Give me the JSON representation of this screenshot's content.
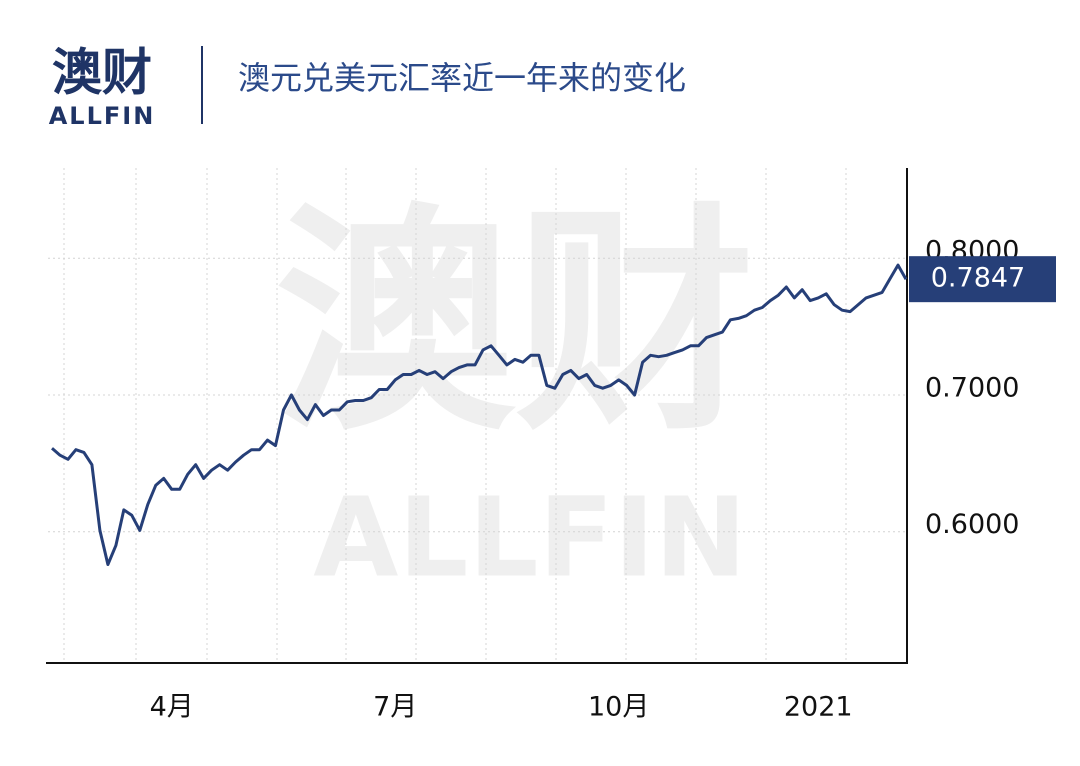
{
  "brand": "澳财",
  "brand_sub": "ALLFIN",
  "watermark": "澳财",
  "watermark_sub": "ALLFIN",
  "chart_data": {
    "type": "line",
    "title": "澳元兑美元汇率近一年来的变化",
    "color": "#263f78",
    "categories": [
      null,
      null,
      null,
      null,
      null,
      null,
      null,
      null,
      null,
      null,
      null,
      null,
      null,
      null,
      null,
      "4月",
      null,
      null,
      null,
      null,
      null,
      null,
      null,
      null,
      null,
      null,
      null,
      null,
      null,
      null,
      null,
      null,
      null,
      null,
      null,
      null,
      null,
      null,
      null,
      null,
      null,
      null,
      null,
      "7月",
      null,
      null,
      null,
      null,
      null,
      null,
      null,
      null,
      null,
      null,
      null,
      null,
      null,
      null,
      null,
      null,
      null,
      null,
      null,
      null,
      null,
      null,
      null,
      null,
      null,
      null,
      null,
      "10月",
      null,
      null,
      null,
      null,
      null,
      null,
      null,
      null,
      null,
      null,
      null,
      null,
      null,
      null,
      null,
      null,
      null,
      null,
      null,
      null,
      null,
      null,
      null,
      null,
      "2021",
      null,
      null,
      null,
      null,
      null,
      null,
      null,
      null,
      null,
      null,
      null
    ],
    "values": [
      0.661,
      0.656,
      0.653,
      0.66,
      0.658,
      0.649,
      0.601,
      0.576,
      0.59,
      0.616,
      0.612,
      0.601,
      0.62,
      0.634,
      0.639,
      0.631,
      0.631,
      0.642,
      0.649,
      0.639,
      0.645,
      0.649,
      0.645,
      0.651,
      0.656,
      0.66,
      0.66,
      0.667,
      0.663,
      0.689,
      0.7,
      0.689,
      0.682,
      0.693,
      0.685,
      0.689,
      0.689,
      0.695,
      0.696,
      0.696,
      0.698,
      0.704,
      0.704,
      0.711,
      0.715,
      0.715,
      0.718,
      0.715,
      0.717,
      0.712,
      0.717,
      0.72,
      0.722,
      0.722,
      0.733,
      0.736,
      0.729,
      0.722,
      0.726,
      0.724,
      0.729,
      0.729,
      0.707,
      0.705,
      0.715,
      0.718,
      0.712,
      0.715,
      0.707,
      0.705,
      0.707,
      0.711,
      0.707,
      0.7,
      0.724,
      0.729,
      0.728,
      0.729,
      0.731,
      0.733,
      0.736,
      0.736,
      0.742,
      0.744,
      0.746,
      0.755,
      0.756,
      0.758,
      0.762,
      0.764,
      0.769,
      0.773,
      0.779,
      0.771,
      0.777,
      0.769,
      0.771,
      0.774,
      0.766,
      0.762,
      0.761,
      0.766,
      0.771,
      0.773,
      0.775,
      0.785,
      0.795,
      0.7847
    ],
    "ylim": [
      0.504,
      0.866
    ],
    "yticks": [
      {
        "value": 0.6,
        "label": "0.6000"
      },
      {
        "value": 0.7,
        "label": "0.7000"
      },
      {
        "value": 0.8,
        "label": "0.8000"
      }
    ],
    "grid": true
  }
}
